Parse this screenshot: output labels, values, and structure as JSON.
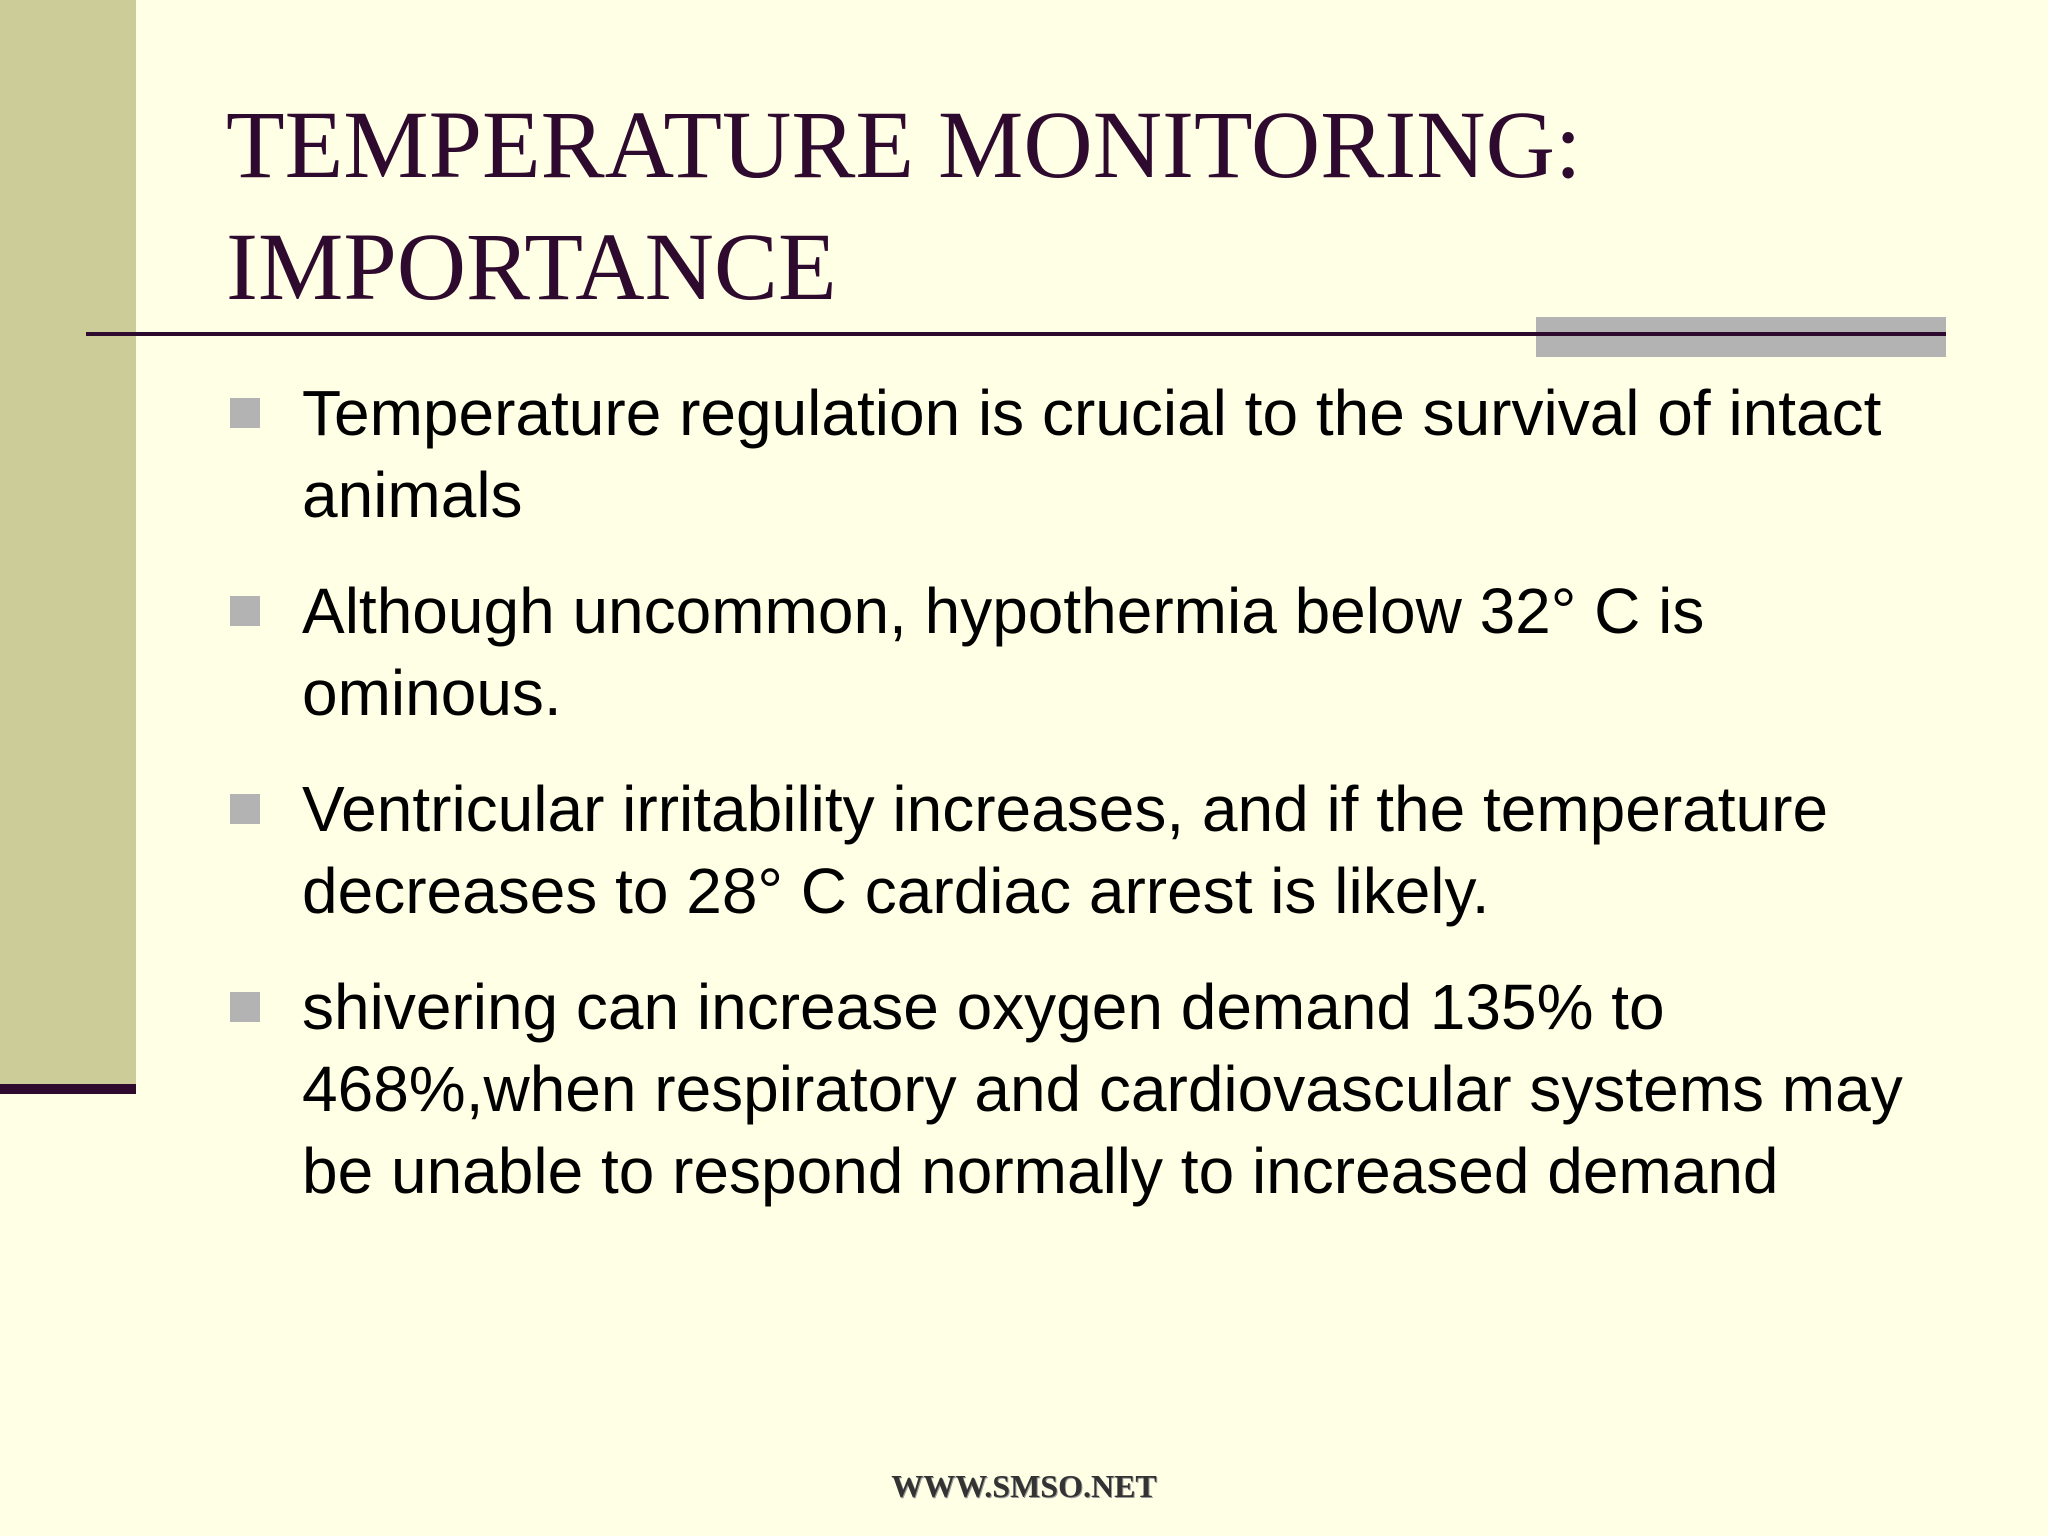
{
  "slide": {
    "title_lines": [
      "TEMPERATURE MONITORING:",
      "IMPORTANCE"
    ],
    "bullets": [
      "Temperature regulation is crucial to the survival of intact animals",
      "Although uncommon, hypothermia below 32° C is ominous.",
      "Ventricular irritability increases, and if the temperature decreases to 28° C cardiac arrest is likely.",
      "shivering can increase oxygen demand 135% to 468%,when respiratory and cardiovascular systems may be unable to respond normally to increased demand"
    ],
    "footer": "WWW.SMSO.NET"
  },
  "colors": {
    "background": "#FFFFE5",
    "left_band": "#CCCC99",
    "title_text": "#2E0A2E",
    "rule": "#2E0A2E",
    "bullet_marker": "#B3B3B3",
    "body_text": "#000000"
  },
  "icons": {
    "bullet_marker": "square-bullet-icon"
  }
}
